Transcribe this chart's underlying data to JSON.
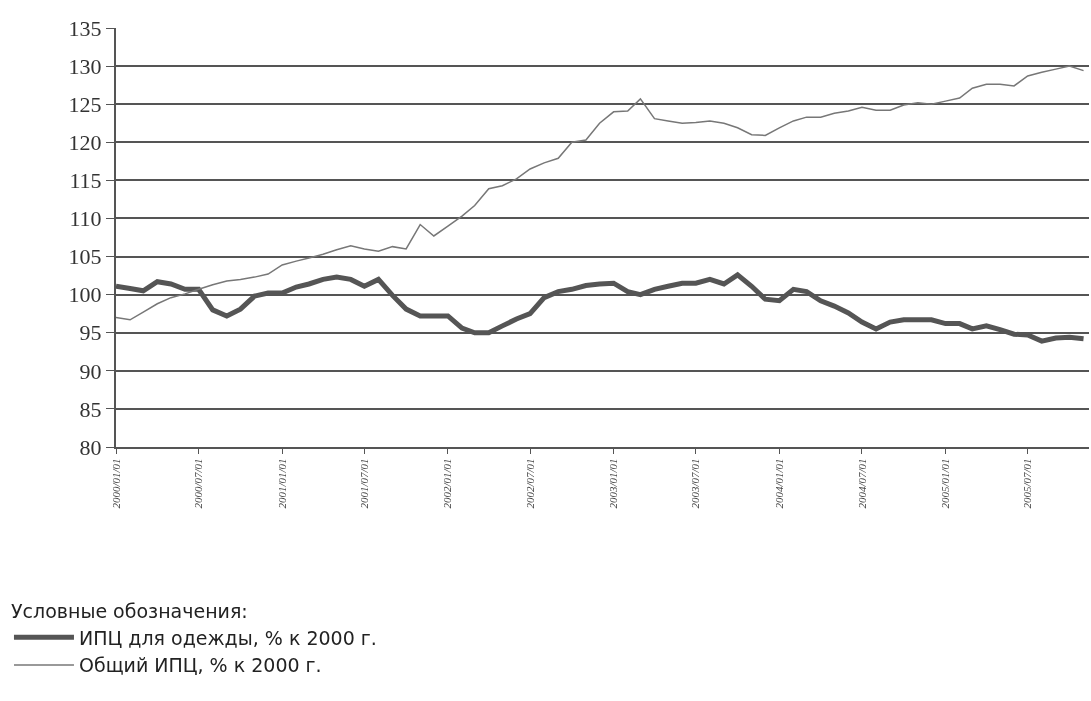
{
  "chart_data": {
    "type": "line",
    "legend_title": "Условные обозначения:",
    "x": [
      "2000-01",
      "2000-02",
      "2000-03",
      "2000-04",
      "2000-05",
      "2000-06",
      "2000-07",
      "2000-08",
      "2000-09",
      "2000-10",
      "2000-11",
      "2000-12",
      "2001-01",
      "2001-02",
      "2001-03",
      "2001-04",
      "2001-05",
      "2001-06",
      "2001-07",
      "2001-08",
      "2001-09",
      "2001-10",
      "2001-11",
      "2001-12",
      "2002-01",
      "2002-02",
      "2002-03",
      "2002-04",
      "2002-05",
      "2002-06",
      "2002-07",
      "2002-08",
      "2002-09",
      "2002-10",
      "2002-11",
      "2002-12",
      "2003-01",
      "2003-02",
      "2003-03",
      "2003-04",
      "2003-05",
      "2003-06",
      "2003-07",
      "2003-08",
      "2003-09",
      "2003-10",
      "2003-11",
      "2003-12",
      "2004-01",
      "2004-02",
      "2004-03",
      "2004-04",
      "2004-05",
      "2004-06",
      "2004-07",
      "2004-08",
      "2004-09",
      "2004-10",
      "2004-11",
      "2004-12",
      "2005-01",
      "2005-02",
      "2005-03",
      "2005-04",
      "2005-05",
      "2005-06",
      "2005-07",
      "2005-08",
      "2005-09",
      "2005-10",
      "2005-11"
    ],
    "series": [
      {
        "name": "ИПЦ для одежды, % к 2000 г.",
        "color": "#555555",
        "values": [
          101.1,
          100.8,
          100.5,
          101.7,
          101.4,
          100.7,
          100.7,
          98.0,
          97.2,
          98.1,
          99.8,
          100.2,
          100.2,
          101.0,
          101.4,
          102.0,
          102.3,
          102.0,
          101.1,
          102.0,
          99.9,
          98.1,
          97.2,
          97.2,
          97.2,
          95.6,
          95.0,
          95.0,
          95.9,
          96.8,
          97.5,
          99.6,
          100.4,
          100.7,
          101.2,
          101.4,
          101.5,
          100.4,
          100.0,
          100.7,
          101.1,
          101.5,
          101.5,
          102.0,
          101.4,
          102.6,
          101.1,
          99.4,
          99.2,
          100.7,
          100.4,
          99.2,
          98.5,
          97.6,
          96.4,
          95.5,
          96.4,
          96.7,
          96.7,
          96.7,
          96.2,
          96.2,
          95.5,
          95.9,
          95.4,
          94.8,
          94.7,
          93.9,
          94.3,
          94.4,
          94.2
        ]
      },
      {
        "name": "Общий ИПЦ, % к 2000 г.",
        "color": "#777777",
        "values": [
          97.0,
          96.7,
          97.7,
          98.8,
          99.6,
          100.1,
          100.7,
          101.3,
          101.8,
          102.0,
          102.3,
          102.7,
          103.9,
          104.4,
          104.8,
          105.3,
          105.9,
          106.4,
          106.0,
          105.7,
          106.3,
          106.0,
          109.2,
          107.7,
          109.0,
          110.3,
          111.7,
          113.9,
          114.3,
          115.2,
          116.5,
          117.3,
          117.9,
          120.0,
          120.3,
          122.5,
          124.0,
          124.1,
          125.7,
          123.1,
          122.8,
          122.5,
          122.6,
          122.8,
          122.5,
          121.9,
          121.0,
          120.9,
          121.9,
          122.8,
          123.3,
          123.3,
          123.8,
          124.1,
          124.6,
          124.2,
          124.2,
          124.9,
          125.2,
          125.0,
          125.4,
          125.8,
          127.1,
          127.6,
          127.6,
          127.4,
          128.7,
          129.2,
          129.6,
          130.0,
          129.4
        ]
      }
    ],
    "xlim": [
      "2000-01-01",
      "2005-11-13"
    ],
    "xticks": [
      {
        "value": "2000-01-01",
        "label": "2000/01/01"
      },
      {
        "value": "2000-07-01",
        "label": "2000/07/01"
      },
      {
        "value": "2001-01-01",
        "label": "2001/01/01"
      },
      {
        "value": "2001-07-01",
        "label": "2001/07/01"
      },
      {
        "value": "2002-01-01",
        "label": "2002/01/01"
      },
      {
        "value": "2002-07-01",
        "label": "2002/07/01"
      },
      {
        "value": "2003-01-01",
        "label": "2003/01/01"
      },
      {
        "value": "2003-07-01",
        "label": "2003/07/01"
      },
      {
        "value": "2004-01-01",
        "label": "2004/01/01"
      },
      {
        "value": "2004-07-01",
        "label": "2004/07/01"
      },
      {
        "value": "2005-01-01",
        "label": "2005/01/01"
      },
      {
        "value": "2005-07-01",
        "label": "2005/07/01"
      }
    ],
    "ylim": [
      80,
      135
    ],
    "yticks": [
      80,
      85,
      90,
      95,
      100,
      105,
      110,
      115,
      120,
      125,
      130,
      135
    ],
    "grid": "y",
    "legend": "bottom left",
    "marker": "none",
    "line_style": "solid"
  }
}
